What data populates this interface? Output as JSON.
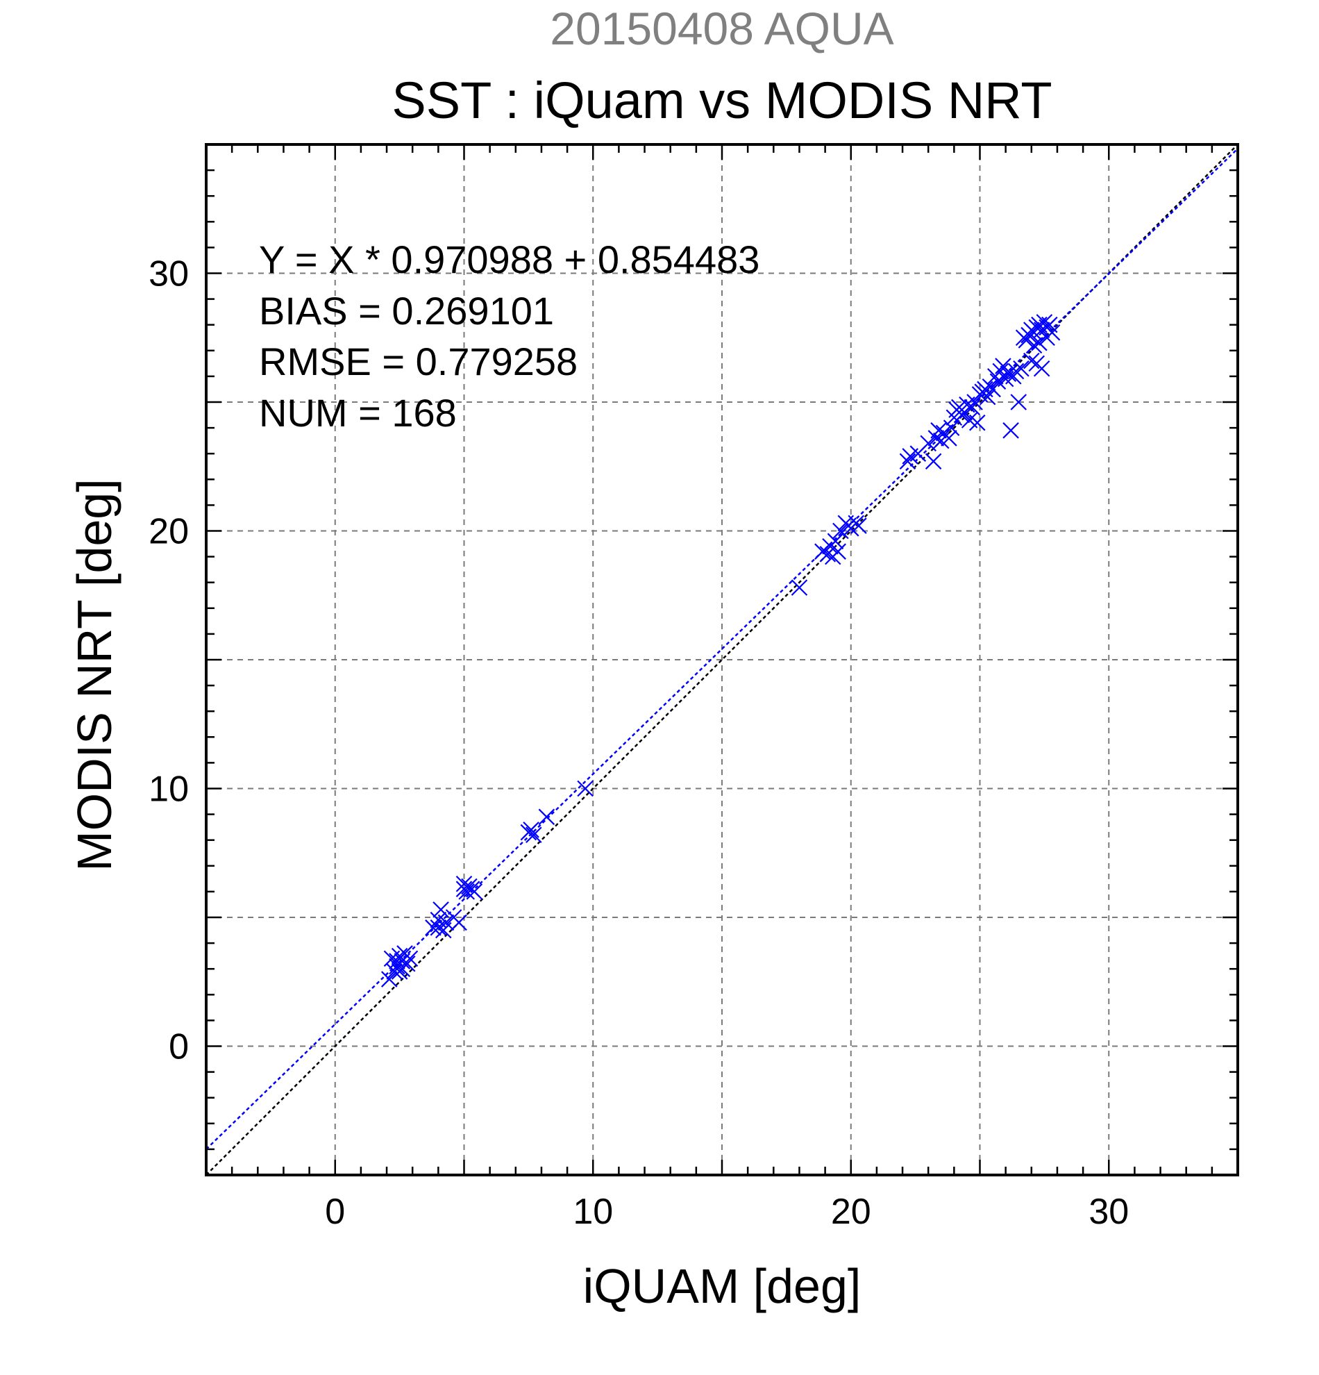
{
  "chart_data": {
    "type": "scatter",
    "header": "20150408 AQUA",
    "title": "SST : iQuam vs MODIS NRT",
    "xlabel": "iQUAM [deg]",
    "ylabel": "MODIS NRT [deg]",
    "xlim": [
      -5,
      35
    ],
    "ylim": [
      -5,
      35
    ],
    "xticks": [
      0,
      10,
      20,
      30
    ],
    "yticks": [
      0,
      10,
      20,
      30
    ],
    "grid_step": 5,
    "minor_step": 1,
    "grid": true,
    "stats": [
      "Y = X * 0.970988 + 0.854483",
      "BIAS = 0.269101",
      "RMSE = 0.779258",
      "NUM = 168"
    ],
    "regression": {
      "slope": 0.970988,
      "intercept": 0.854483,
      "color": "#0000ff"
    },
    "identity_line": {
      "color": "#000000"
    },
    "marker_color": "#0000ff",
    "series": [
      {
        "points": [
          [
            2.1,
            2.6
          ],
          [
            2.2,
            3.4
          ],
          [
            2.3,
            2.9
          ],
          [
            2.4,
            3.1
          ],
          [
            2.5,
            3.5
          ],
          [
            2.5,
            2.9
          ],
          [
            2.6,
            3.3
          ],
          [
            2.7,
            3.6
          ],
          [
            2.8,
            3.2
          ],
          [
            2.6,
            3.0
          ],
          [
            2.4,
            3.3
          ],
          [
            2.9,
            3.4
          ],
          [
            3.8,
            4.6
          ],
          [
            4.0,
            4.9
          ],
          [
            4.1,
            5.3
          ],
          [
            4.2,
            4.5
          ],
          [
            4.0,
            4.6
          ],
          [
            4.3,
            4.8
          ],
          [
            4.6,
            5.0
          ],
          [
            4.8,
            4.8
          ],
          [
            5.0,
            6.3
          ],
          [
            5.1,
            6.0
          ],
          [
            5.2,
            6.2
          ],
          [
            5.3,
            6.1
          ],
          [
            5.4,
            6.0
          ],
          [
            5.0,
            6.1
          ],
          [
            7.5,
            8.3
          ],
          [
            7.6,
            8.4
          ],
          [
            7.7,
            8.2
          ],
          [
            8.2,
            8.9
          ],
          [
            9.7,
            10.0
          ],
          [
            18.0,
            17.8
          ],
          [
            18.9,
            19.2
          ],
          [
            19.1,
            19.1
          ],
          [
            19.2,
            19.4
          ],
          [
            19.3,
            19.0
          ],
          [
            19.5,
            19.2
          ],
          [
            19.4,
            19.6
          ],
          [
            19.6,
            20.0
          ],
          [
            19.8,
            20.3
          ],
          [
            20.0,
            20.1
          ],
          [
            20.2,
            20.3
          ],
          [
            20.3,
            20.2
          ],
          [
            19.9,
            20.2
          ],
          [
            22.2,
            22.7
          ],
          [
            22.3,
            22.9
          ],
          [
            22.6,
            23.0
          ],
          [
            23.0,
            23.4
          ],
          [
            23.2,
            22.7
          ],
          [
            23.3,
            23.6
          ],
          [
            23.4,
            23.9
          ],
          [
            23.5,
            23.5
          ],
          [
            23.6,
            23.8
          ],
          [
            23.8,
            23.6
          ],
          [
            23.9,
            24.0
          ],
          [
            24.0,
            24.4
          ],
          [
            24.1,
            24.7
          ],
          [
            24.2,
            24.8
          ],
          [
            24.3,
            24.5
          ],
          [
            24.4,
            24.6
          ],
          [
            24.5,
            24.9
          ],
          [
            24.6,
            24.3
          ],
          [
            24.7,
            24.8
          ],
          [
            24.8,
            25.0
          ],
          [
            24.9,
            24.2
          ],
          [
            25.0,
            25.3
          ],
          [
            25.1,
            25.4
          ],
          [
            25.2,
            25.5
          ],
          [
            25.3,
            25.2
          ],
          [
            25.4,
            25.6
          ],
          [
            25.5,
            25.5
          ],
          [
            25.6,
            26.0
          ],
          [
            25.7,
            25.8
          ],
          [
            25.8,
            26.2
          ],
          [
            25.9,
            26.4
          ],
          [
            26.0,
            25.9
          ],
          [
            26.1,
            26.1
          ],
          [
            26.2,
            23.9
          ],
          [
            26.3,
            26.0
          ],
          [
            26.4,
            26.2
          ],
          [
            26.5,
            25.0
          ],
          [
            26.6,
            26.3
          ],
          [
            26.7,
            27.5
          ],
          [
            26.8,
            27.4
          ],
          [
            26.9,
            27.6
          ],
          [
            27.0,
            27.8
          ],
          [
            27.1,
            27.7
          ],
          [
            27.2,
            27.9
          ],
          [
            27.3,
            28.0
          ],
          [
            27.4,
            27.8
          ],
          [
            27.5,
            28.1
          ],
          [
            27.6,
            27.9
          ],
          [
            27.7,
            28.0
          ],
          [
            27.8,
            27.7
          ],
          [
            27.2,
            26.5
          ],
          [
            27.4,
            26.3
          ],
          [
            27.0,
            26.6
          ],
          [
            27.3,
            27.3
          ],
          [
            27.6,
            27.5
          ],
          [
            27.1,
            27.2
          ]
        ]
      }
    ]
  }
}
